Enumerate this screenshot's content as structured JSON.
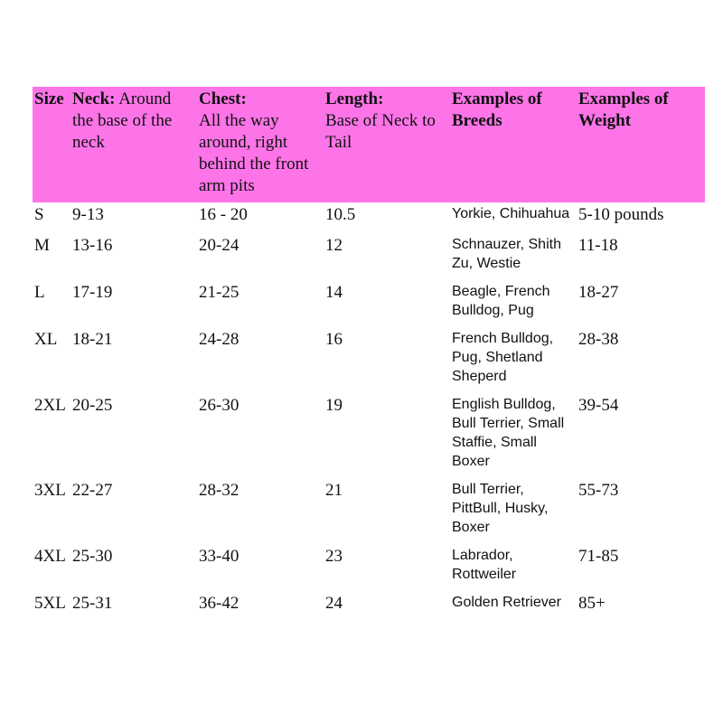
{
  "table": {
    "header": [
      {
        "bold": "Size"
      },
      {
        "bold": "Neck:",
        "text": "Around the base of the neck"
      },
      {
        "bold": "Chest:",
        "text": "All the way around, right behind the front arm pits"
      },
      {
        "bold": "Length:",
        "text": "Base of Neck to Tail"
      },
      {
        "bold": "Examples of Breeds"
      },
      {
        "bold": "Examples of Weight"
      }
    ],
    "rows": [
      [
        "S",
        "9-13",
        "16 - 20",
        "10.5",
        "Yorkie, Chihuahua",
        "5-10 pounds"
      ],
      [
        "M",
        "13-16",
        "20-24",
        "12",
        "Schnauzer, Shith Zu, Westie",
        "11-18"
      ],
      [
        "L",
        "17-19",
        "21-25",
        "14",
        "Beagle, French Bulldog, Pug",
        "18-27"
      ],
      [
        "XL",
        "18-21",
        "24-28",
        "16",
        "French Bulldog, Pug, Shetland Sheperd",
        "28-38"
      ],
      [
        "2XL",
        "20-25",
        "26-30",
        "19",
        "English Bulldog, Bull Terrier, Small Staffie, Small Boxer",
        "39-54"
      ],
      [
        "3XL",
        "22-27",
        "28-32",
        "21",
        "Bull Terrier, PittBull, Husky, Boxer",
        "55-73"
      ],
      [
        "4XL",
        "25-30",
        "33-40",
        "23",
        "Labrador, Rottweiler",
        "71-85"
      ],
      [
        "5XL",
        "25-31",
        "36-42",
        "24",
        "Golden Retriever",
        "85+"
      ]
    ]
  }
}
